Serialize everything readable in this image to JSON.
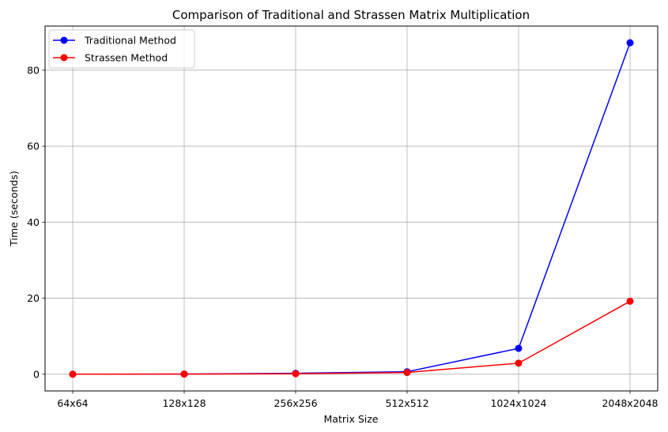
{
  "chart_data": {
    "type": "line",
    "title": "Comparison of Traditional and Strassen Matrix Multiplication",
    "xlabel": "Matrix Size",
    "ylabel": "Time (seconds)",
    "categories": [
      "64x64",
      "128x128",
      "256x256",
      "512x512",
      "1024x1024",
      "2048x2048"
    ],
    "yticks": [
      0,
      20,
      40,
      60,
      80
    ],
    "ylim": [
      -4.4,
      91.6
    ],
    "grid": true,
    "legend_position": "top-left",
    "series": [
      {
        "name": "Traditional Method",
        "color": "#0000ff",
        "values": [
          0.01,
          0.04,
          0.25,
          0.65,
          6.8,
          87.2
        ]
      },
      {
        "name": "Strassen Method",
        "color": "#ff0000",
        "values": [
          0.01,
          0.03,
          0.12,
          0.45,
          2.9,
          19.2
        ]
      }
    ]
  }
}
